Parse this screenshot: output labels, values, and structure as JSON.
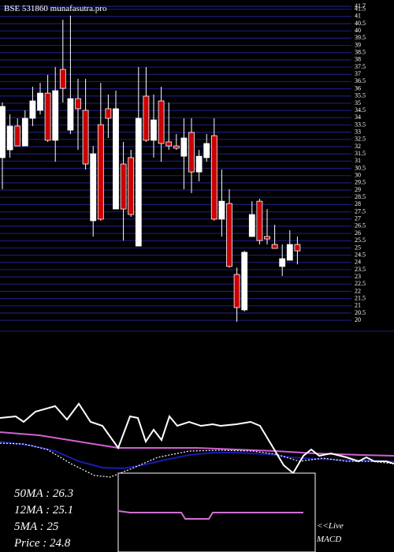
{
  "header": {
    "title": "BSE 531860  munafasutra.pro"
  },
  "indicators": [
    "50MA : 26.3",
    "12MA : 25.1",
    "5MA : 25",
    "Price   : 24.8"
  ],
  "macd_labels": [
    "<<Live",
    "MACD"
  ],
  "chart_data": [
    {
      "type": "candlestick",
      "categories": [
        null,
        null,
        null,
        null,
        null,
        null,
        null,
        null,
        null,
        null,
        null,
        null,
        null,
        null,
        null,
        null,
        null,
        null,
        null,
        null,
        null,
        null,
        null,
        null,
        null,
        null,
        null,
        null,
        null,
        null,
        null,
        null,
        null,
        null,
        null,
        null,
        null,
        null,
        null,
        null
      ],
      "open": [
        31.24,
        31.78,
        33.42,
        32.05,
        33.96,
        34.51,
        35.7,
        32.44,
        37.34,
        33.14,
        35.32,
        34.51,
        26.88,
        33.52,
        34.62,
        27.69,
        30.8,
        31.24,
        25.13,
        35.49,
        32.44,
        35.16,
        32.33,
        32.05,
        31.34,
        32.98,
        30.25,
        31.24,
        32.76,
        26.99,
        28.07,
        23.17,
        20.72,
        25.79,
        28.23,
        25.79,
        25.24,
        23.72,
        24.15,
        25.24
      ],
      "high": [
        35.05,
        34.23,
        33.96,
        34.51,
        36.14,
        36.41,
        36.96,
        37.5,
        40.77,
        41.05,
        36.69,
        36.69,
        32.05,
        36.41,
        35.6,
        35.87,
        32.33,
        31.78,
        37.5,
        37.5,
        35.6,
        36.14,
        35.05,
        32.87,
        33.96,
        33.96,
        31.78,
        32.87,
        33.96,
        30.42,
        29.06,
        23.64,
        24.8,
        28.23,
        28.4,
        27.69,
        26.6,
        25.24,
        26.22,
        25.79
      ],
      "low": [
        29.06,
        31.24,
        32.05,
        32.05,
        33.42,
        34.23,
        32.33,
        30.96,
        35.05,
        32.87,
        31.78,
        30.42,
        25.79,
        26.88,
        32.6,
        27.69,
        25.51,
        27.15,
        25.13,
        32.33,
        31.24,
        30.96,
        31.78,
        31.78,
        29.06,
        28.79,
        29.6,
        30.96,
        26.88,
        25.79,
        23.64,
        19.9,
        20.61,
        25.79,
        25.24,
        25.24,
        24.97,
        23.06,
        24.15,
        23.87
      ],
      "close": [
        34.78,
        33.42,
        32.05,
        33.96,
        35.16,
        35.7,
        32.44,
        35.87,
        36.03,
        35.32,
        34.62,
        30.8,
        31.51,
        26.99,
        33.96,
        34.62,
        27.69,
        27.31,
        33.96,
        32.44,
        33.85,
        32.22,
        32.05,
        31.89,
        32.6,
        30.25,
        31.34,
        32.22,
        26.99,
        28.23,
        23.72,
        20.88,
        24.7,
        27.31,
        25.51,
        25.62,
        24.97,
        24.26,
        25.24,
        24.8
      ],
      "up_color": "#ffffff",
      "down_color": "#cc0000",
      "ylim": [
        19.9,
        41.7
      ],
      "yticks": [
        20,
        20.5,
        21,
        21.5,
        22,
        22.5,
        23,
        23.5,
        24,
        24.5,
        25,
        25.5,
        26,
        26.5,
        27,
        27.5,
        28,
        28.5,
        29,
        29.5,
        30,
        30.5,
        31,
        31.5,
        32,
        32.5,
        33,
        33.5,
        34,
        34.5,
        35,
        35.5,
        36,
        36.5,
        37,
        37.5,
        38,
        38.5,
        39,
        39.5,
        40,
        40.5,
        41,
        41.5,
        41.7
      ],
      "grid": true,
      "grid_color": "#1c1c78"
    },
    {
      "type": "line",
      "xlim": [
        0,
        500
      ],
      "ylim": [
        0,
        280
      ],
      "series": [
        {
          "color": "#d060d0",
          "x": [
            0,
            50,
            100,
            150,
            200,
            250,
            300,
            350,
            400,
            460,
            500
          ],
          "values": [
            152,
            148,
            140,
            132,
            132,
            132,
            130,
            128,
            125,
            123,
            122
          ]
        },
        {
          "color": "#1a1ab0",
          "x": [
            0,
            40,
            70,
            100,
            130,
            155,
            180,
            210,
            240,
            270,
            300,
            340,
            370,
            400,
            430,
            460,
            500
          ],
          "values": [
            140,
            135,
            128,
            115,
            107,
            106,
            110,
            117,
            123,
            126,
            126,
            124,
            120,
            118,
            117,
            116,
            115
          ]
        },
        {
          "color": "#ffffff",
          "dashed": true,
          "x": [
            0,
            30,
            60,
            90,
            120,
            140,
            170,
            200,
            240,
            280,
            320,
            350,
            380,
            410,
            440,
            470,
            500
          ],
          "values": [
            138,
            137,
            130,
            112,
            97,
            95,
            107,
            120,
            128,
            129,
            128,
            124,
            115,
            119,
            115,
            115,
            112
          ]
        },
        {
          "color": "#ffffff",
          "x": [
            0,
            20,
            30,
            45,
            70,
            85,
            100,
            115,
            130,
            150,
            165,
            175,
            185,
            195,
            205,
            215,
            225,
            240,
            255,
            270,
            280,
            300,
            318,
            330,
            345,
            360,
            372,
            385,
            395,
            405,
            420,
            440,
            455,
            465,
            475,
            490,
            500
          ],
          "values": [
            170,
            172,
            165,
            178,
            185,
            168,
            188,
            165,
            160,
            132,
            172,
            170,
            140,
            155,
            142,
            172,
            160,
            165,
            160,
            162,
            160,
            162,
            165,
            160,
            135,
            110,
            100,
            122,
            130,
            122,
            125,
            120,
            115,
            120,
            115,
            115,
            112
          ]
        }
      ],
      "macd": {
        "color": "#d070d0",
        "x": [
          150,
          165,
          230,
          235,
          265,
          270,
          385
        ],
        "values": [
          52,
          50,
          50,
          42,
          42,
          50,
          50
        ]
      }
    }
  ]
}
